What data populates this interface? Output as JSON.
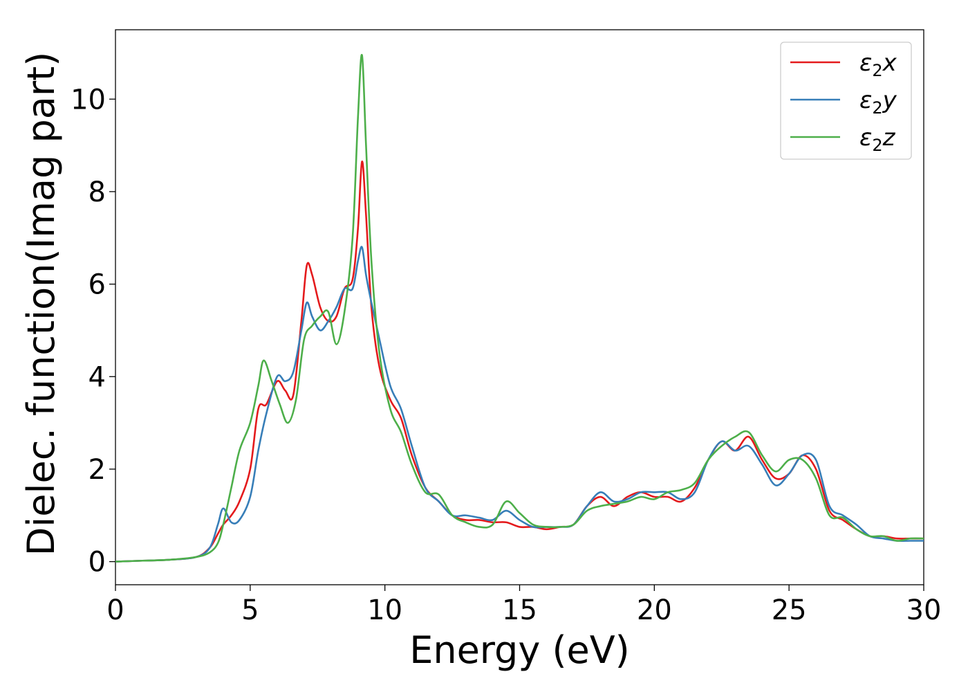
{
  "chart_data": {
    "type": "line",
    "title": "",
    "xlabel": "Energy (eV)",
    "ylabel": "Dielec. function(Imag part)",
    "xlim": [
      0,
      30
    ],
    "ylim": [
      -0.5,
      11.5
    ],
    "xticks": [
      0,
      5,
      10,
      15,
      20,
      25,
      30
    ],
    "yticks": [
      0,
      2,
      4,
      6,
      8,
      10
    ],
    "xtick_labels": [
      "0",
      "5",
      "10",
      "15",
      "20",
      "25",
      "30"
    ],
    "ytick_labels": [
      "0",
      "2",
      "4",
      "6",
      "8",
      "10"
    ],
    "grid": false,
    "legend_position": "top-right",
    "series": [
      {
        "name": "ε₂x",
        "legend": {
          "base": "ε",
          "sub": "2",
          "var": "x"
        },
        "color": "#e41a1c",
        "x": [
          0,
          1,
          2,
          3,
          3.5,
          3.8,
          4.0,
          4.3,
          4.6,
          5.0,
          5.3,
          5.6,
          6.0,
          6.3,
          6.6,
          6.9,
          7.1,
          7.3,
          7.6,
          7.9,
          8.2,
          8.5,
          8.8,
          9.0,
          9.15,
          9.3,
          9.5,
          9.8,
          10.2,
          10.6,
          11.0,
          11.5,
          12.0,
          12.5,
          13.0,
          13.5,
          14.0,
          14.5,
          15.0,
          15.5,
          16.0,
          16.5,
          17.0,
          17.5,
          18.0,
          18.5,
          19.0,
          19.5,
          20.0,
          20.5,
          21.0,
          21.5,
          22.0,
          22.5,
          23.0,
          23.5,
          24.0,
          24.5,
          25.0,
          25.5,
          26.0,
          26.5,
          27.0,
          27.5,
          28.0,
          28.5,
          29.0,
          29.5,
          30.0
        ],
        "y": [
          0,
          0.02,
          0.04,
          0.1,
          0.3,
          0.6,
          0.8,
          1.0,
          1.3,
          2.0,
          3.3,
          3.4,
          3.9,
          3.7,
          3.6,
          5.2,
          6.4,
          6.2,
          5.5,
          5.2,
          5.3,
          5.9,
          6.1,
          7.2,
          8.65,
          7.5,
          5.5,
          4.2,
          3.5,
          3.1,
          2.3,
          1.6,
          1.3,
          1.0,
          0.9,
          0.9,
          0.85,
          0.85,
          0.75,
          0.75,
          0.7,
          0.75,
          0.8,
          1.2,
          1.4,
          1.2,
          1.4,
          1.5,
          1.4,
          1.4,
          1.3,
          1.6,
          2.2,
          2.6,
          2.4,
          2.7,
          2.2,
          1.8,
          1.9,
          2.3,
          2.0,
          1.1,
          0.9,
          0.7,
          0.55,
          0.55,
          0.5,
          0.5,
          0.5
        ]
      },
      {
        "name": "ε₂y",
        "legend": {
          "base": "ε",
          "sub": "2",
          "var": "y"
        },
        "color": "#377eb8",
        "x": [
          0,
          1,
          2,
          3,
          3.5,
          3.8,
          4.0,
          4.3,
          4.6,
          5.0,
          5.3,
          5.6,
          6.0,
          6.3,
          6.6,
          6.9,
          7.1,
          7.3,
          7.6,
          7.9,
          8.2,
          8.5,
          8.8,
          9.0,
          9.15,
          9.3,
          9.5,
          9.8,
          10.2,
          10.6,
          11.0,
          11.5,
          12.0,
          12.5,
          13.0,
          13.5,
          14.0,
          14.5,
          15.0,
          15.5,
          16.0,
          16.5,
          17.0,
          17.5,
          18.0,
          18.5,
          19.0,
          19.5,
          20.0,
          20.5,
          21.0,
          21.5,
          22.0,
          22.5,
          23.0,
          23.5,
          24.0,
          24.5,
          25.0,
          25.5,
          26.0,
          26.5,
          27.0,
          27.5,
          28.0,
          28.5,
          29.0,
          29.5,
          30.0
        ],
        "y": [
          0,
          0.02,
          0.04,
          0.1,
          0.3,
          0.8,
          1.15,
          0.85,
          0.9,
          1.4,
          2.4,
          3.2,
          4.0,
          3.9,
          4.1,
          5.0,
          5.6,
          5.3,
          5.0,
          5.2,
          5.5,
          5.9,
          5.9,
          6.5,
          6.8,
          6.2,
          5.6,
          4.8,
          3.8,
          3.3,
          2.5,
          1.6,
          1.3,
          1.0,
          1.0,
          0.95,
          0.9,
          1.1,
          0.9,
          0.75,
          0.75,
          0.75,
          0.8,
          1.2,
          1.5,
          1.3,
          1.35,
          1.5,
          1.5,
          1.5,
          1.35,
          1.5,
          2.2,
          2.6,
          2.4,
          2.5,
          2.1,
          1.65,
          1.9,
          2.3,
          2.2,
          1.2,
          1.0,
          0.8,
          0.55,
          0.5,
          0.45,
          0.45,
          0.45
        ]
      },
      {
        "name": "ε₂z",
        "legend": {
          "base": "ε",
          "sub": "2",
          "var": "z"
        },
        "color": "#4daf4a",
        "x": [
          0,
          1,
          2,
          3,
          3.5,
          3.8,
          4.0,
          4.3,
          4.6,
          5.0,
          5.3,
          5.5,
          5.8,
          6.1,
          6.4,
          6.7,
          7.0,
          7.3,
          7.6,
          7.9,
          8.2,
          8.5,
          8.8,
          9.0,
          9.15,
          9.3,
          9.5,
          9.8,
          10.2,
          10.6,
          11.0,
          11.5,
          12.0,
          12.5,
          13.0,
          13.5,
          14.0,
          14.5,
          15.0,
          15.5,
          16.0,
          16.5,
          17.0,
          17.5,
          18.0,
          18.5,
          19.0,
          19.5,
          20.0,
          20.5,
          21.0,
          21.5,
          22.0,
          22.5,
          23.0,
          23.5,
          24.0,
          24.5,
          25.0,
          25.5,
          26.0,
          26.5,
          27.0,
          27.5,
          28.0,
          28.5,
          29.0,
          29.5,
          30.0
        ],
        "y": [
          0,
          0.02,
          0.04,
          0.1,
          0.2,
          0.4,
          0.8,
          1.6,
          2.4,
          3.0,
          3.8,
          4.35,
          3.9,
          3.4,
          3.0,
          3.5,
          4.8,
          5.1,
          5.3,
          5.4,
          4.7,
          5.4,
          7.0,
          9.6,
          10.95,
          9.0,
          6.5,
          4.5,
          3.3,
          2.8,
          2.1,
          1.5,
          1.45,
          1.0,
          0.85,
          0.75,
          0.8,
          1.3,
          1.05,
          0.8,
          0.75,
          0.75,
          0.8,
          1.1,
          1.2,
          1.25,
          1.3,
          1.4,
          1.35,
          1.5,
          1.55,
          1.7,
          2.2,
          2.5,
          2.7,
          2.8,
          2.3,
          1.95,
          2.2,
          2.2,
          1.8,
          1.0,
          0.95,
          0.7,
          0.55,
          0.55,
          0.45,
          0.5,
          0.5
        ]
      }
    ]
  }
}
